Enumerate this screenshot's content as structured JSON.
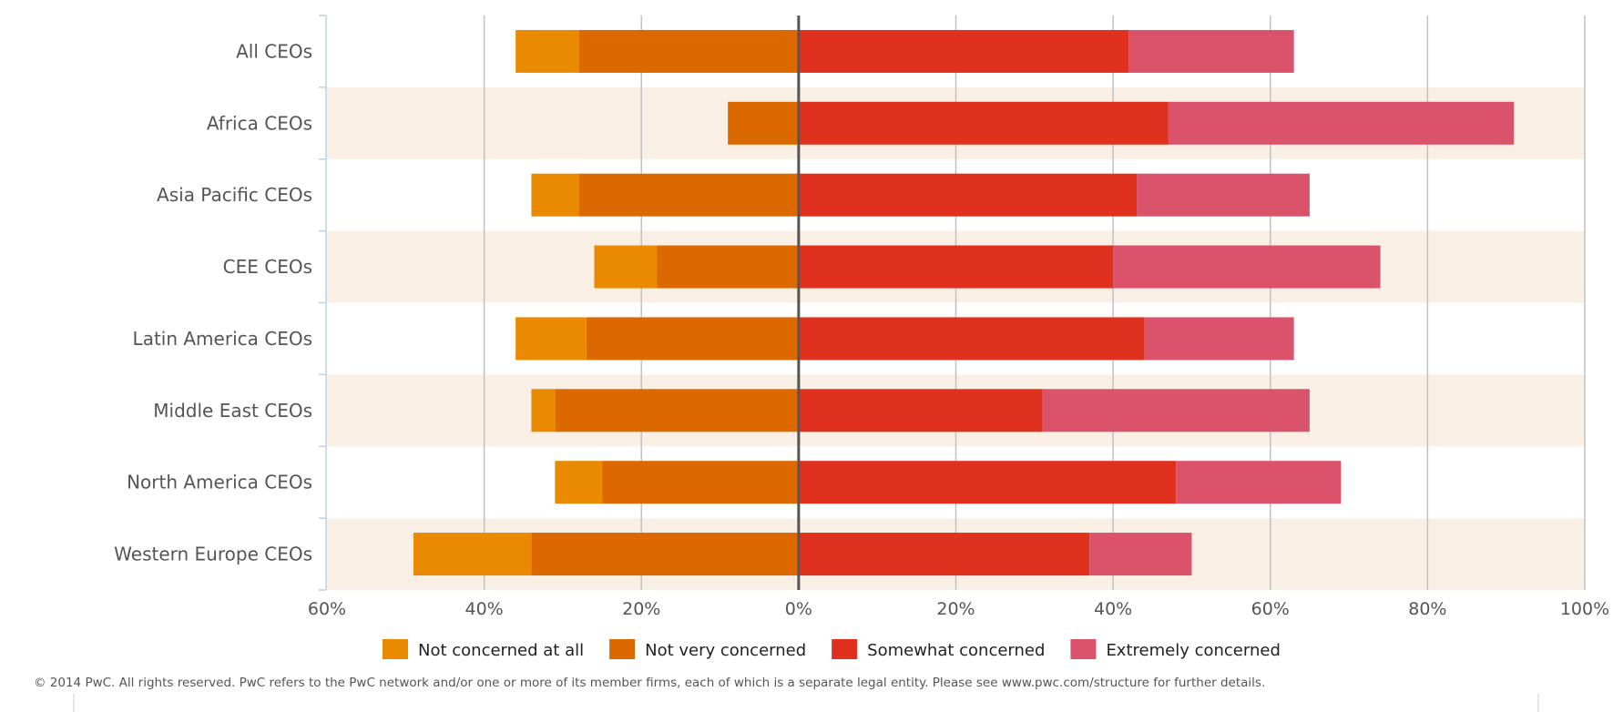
{
  "chart_data": {
    "type": "bar",
    "orientation": "horizontal",
    "stacking": "diverging",
    "categories": [
      "All CEOs",
      "Africa CEOs",
      "Asia Pacific CEOs",
      "CEE CEOs",
      "Latin America CEOs",
      "Middle East CEOs",
      "North America CEOs",
      "Western Europe CEOs"
    ],
    "series": [
      {
        "name": "Not concerned at all",
        "side": "negative",
        "color": "#e98a00",
        "values": [
          8,
          0,
          6,
          8,
          9,
          3,
          6,
          15
        ]
      },
      {
        "name": "Not very concerned",
        "side": "negative",
        "color": "#dc6900",
        "values": [
          28,
          9,
          28,
          18,
          27,
          31,
          25,
          34
        ]
      },
      {
        "name": "Somewhat concerned",
        "side": "positive",
        "color": "#e0301e",
        "values": [
          42,
          47,
          43,
          40,
          44,
          31,
          48,
          37
        ]
      },
      {
        "name": "Extremely concerned",
        "side": "positive",
        "color": "#db536a",
        "values": [
          21,
          44,
          22,
          34,
          19,
          34,
          21,
          13
        ]
      }
    ],
    "xlim": [
      -60,
      100
    ],
    "xticks": [
      "60%",
      "40%",
      "20%",
      "0%",
      "20%",
      "40%",
      "60%",
      "80%",
      "100%"
    ],
    "grid": true,
    "alternate_band_color": "#f9efe5",
    "legend_position": "bottom",
    "title": "",
    "xlabel": "",
    "ylabel": ""
  },
  "footer": {
    "copyright": "© 2014 PwC. All rights reserved. PwC refers to the PwC network and/or one or more of its member firms, each of which is a separate legal entity. Please see www.pwc.com/structure for further details."
  }
}
